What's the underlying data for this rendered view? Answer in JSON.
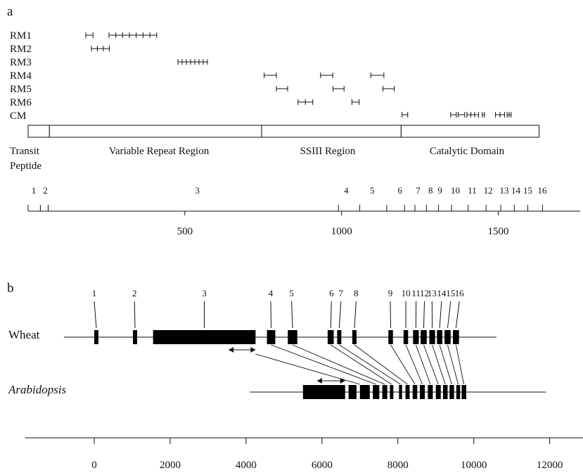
{
  "panel_a": {
    "label": "a",
    "motifs": [
      {
        "name": "RM1",
        "groups": [
          {
            "start": 184,
            "end": 207,
            "ticks": 2
          },
          {
            "start": 258,
            "end": 410,
            "ticks": 8
          }
        ]
      },
      {
        "name": "RM2",
        "groups": [
          {
            "start": 202,
            "end": 259,
            "ticks": 4
          }
        ]
      },
      {
        "name": "RM3",
        "groups": [
          {
            "start": 478,
            "end": 572,
            "ticks": 8
          }
        ]
      },
      {
        "name": "RM4",
        "groups": [
          {
            "start": 753,
            "end": 792,
            "ticks": 2
          },
          {
            "start": 933,
            "end": 972,
            "ticks": 2
          },
          {
            "start": 1093,
            "end": 1135,
            "ticks": 2
          }
        ]
      },
      {
        "name": "RM5",
        "groups": [
          {
            "start": 792,
            "end": 828,
            "ticks": 2
          },
          {
            "start": 973,
            "end": 1008,
            "ticks": 2
          },
          {
            "start": 1132,
            "end": 1168,
            "ticks": 2
          }
        ]
      },
      {
        "name": "RM6",
        "groups": [
          {
            "start": 861,
            "end": 908,
            "ticks": 3
          },
          {
            "start": 1033,
            "end": 1056,
            "ticks": 2
          }
        ]
      },
      {
        "name": "CM",
        "groups": [
          {
            "start": 1193,
            "end": 1211,
            "ticks": 2
          },
          {
            "start": 1348,
            "end": 1366,
            "ticks": 2
          },
          {
            "start": 1372,
            "end": 1393,
            "ticks": 2
          },
          {
            "start": 1400,
            "end": 1437,
            "ticks": 4
          },
          {
            "start": 1449,
            "end": 1456,
            "ticks": 2
          },
          {
            "start": 1491,
            "end": 1520,
            "ticks": 3
          },
          {
            "start": 1528,
            "end": 1541,
            "ticks": 3
          }
        ]
      }
    ],
    "regions": [
      {
        "name": "Transit Peptide",
        "lines": [
          "Transit",
          "Peptide"
        ],
        "start": 0,
        "end": 68
      },
      {
        "name": "Variable Repeat Region",
        "lines": [
          "Variable Repeat Region"
        ],
        "start": 68,
        "end": 745
      },
      {
        "name": "SSIII Region",
        "lines": [
          "SSIII Region"
        ],
        "start": 745,
        "end": 1190
      },
      {
        "name": "Catalytic Domain",
        "lines": [
          "Catalytic Domain"
        ],
        "start": 1190,
        "end": 1630
      }
    ],
    "exon_numbers": [
      "1",
      "2",
      "3",
      "4",
      "5",
      "6",
      "7",
      "8",
      "9",
      "10",
      "11",
      "12",
      "13",
      "14",
      "15",
      "16"
    ],
    "exon_label_pos": [
      18,
      55,
      540,
      1015,
      1098,
      1186,
      1244,
      1284,
      1314,
      1363,
      1417,
      1468,
      1519,
      1556,
      1594,
      1640
    ],
    "exon_boundaries": [
      0,
      39,
      64,
      990,
      1058,
      1144,
      1201,
      1234,
      1271,
      1309,
      1351,
      1404,
      1461,
      1508,
      1551,
      1594,
      1641
    ],
    "axis": {
      "min": 0,
      "max": 1780,
      "ticks": [
        500,
        1000,
        1500
      ],
      "tick_labels": [
        "500",
        "1000",
        "1500"
      ]
    }
  },
  "panel_b": {
    "label": "b",
    "exon_numbers": [
      "1",
      "2",
      "3",
      "4",
      "5",
      "6",
      "7",
      "8",
      "9",
      "10",
      "11",
      "12",
      "13",
      "14",
      "15",
      "16"
    ],
    "wheat": {
      "name": "Wheat",
      "line": [
        -800,
        10600
      ],
      "exons": [
        [
          0,
          110
        ],
        [
          1020,
          1130
        ],
        [
          1550,
          4250
        ],
        [
          4550,
          4770
        ],
        [
          5100,
          5350
        ],
        [
          6150,
          6310
        ],
        [
          6400,
          6510
        ],
        [
          6800,
          6910
        ],
        [
          7750,
          7870
        ],
        [
          8150,
          8270
        ],
        [
          8400,
          8550
        ],
        [
          8600,
          8760
        ],
        [
          8830,
          8980
        ],
        [
          9030,
          9170
        ],
        [
          9230,
          9390
        ],
        [
          9450,
          9610
        ]
      ],
      "label_pos": [
        0,
        1060,
        2900,
        4650,
        5200,
        6250,
        6500,
        6900,
        7800,
        8210,
        8480,
        8700,
        8900,
        9150,
        9390,
        9620
      ],
      "arrow": [
        3540,
        4250
      ]
    },
    "arabidopsis": {
      "name": "Arabidopsis",
      "line": [
        4100,
        11900
      ],
      "exons": [
        [
          5500,
          6610
        ],
        [
          6700,
          6910
        ],
        [
          7000,
          7260
        ],
        [
          7340,
          7510
        ],
        [
          7590,
          7720
        ],
        [
          7790,
          7880
        ],
        [
          8030,
          8110
        ],
        [
          8200,
          8310
        ],
        [
          8390,
          8510
        ],
        [
          8580,
          8710
        ],
        [
          8790,
          8920
        ],
        [
          9000,
          9130
        ],
        [
          9190,
          9310
        ],
        [
          9360,
          9480
        ],
        [
          9540,
          9640
        ],
        [
          9680,
          9800
        ]
      ],
      "arrow": [
        5870,
        6610
      ]
    },
    "axis": {
      "min": -1900,
      "max": 13200,
      "ticks": [
        0,
        2000,
        4000,
        6000,
        8000,
        10000,
        12000
      ],
      "tick_labels": [
        "0",
        "2000",
        "4000",
        "6000",
        "8000",
        "10000",
        "12000"
      ]
    }
  }
}
